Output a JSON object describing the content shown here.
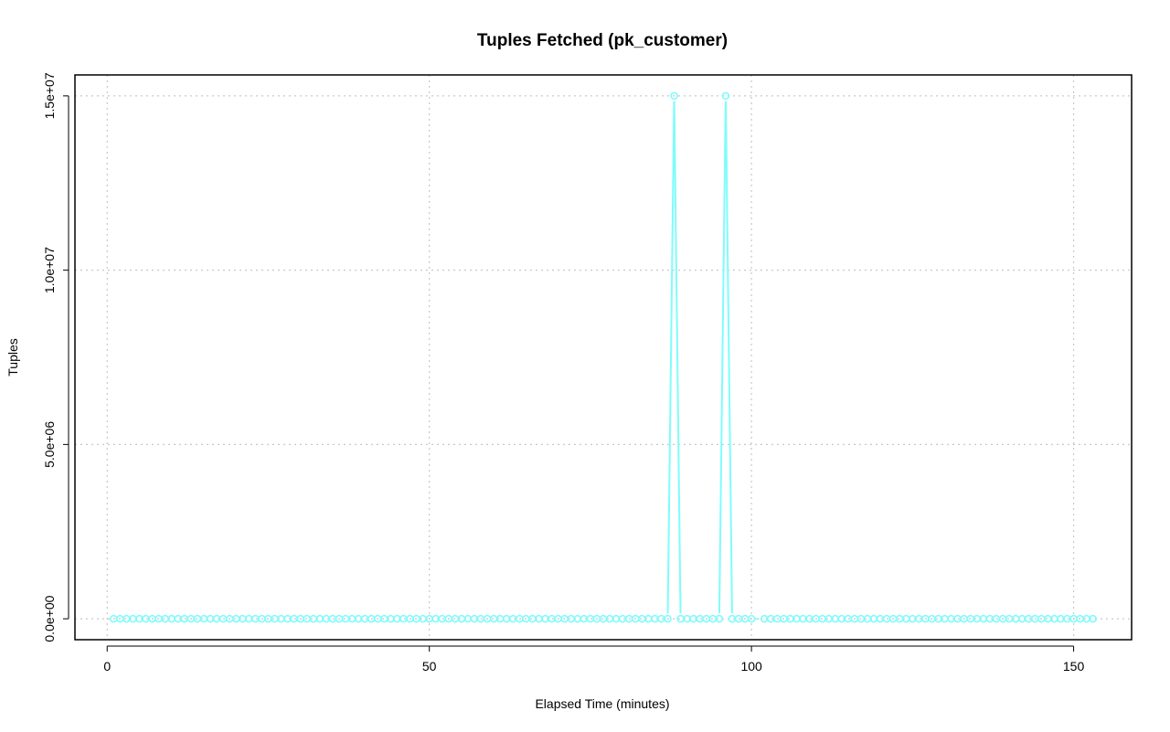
{
  "chart_data": {
    "type": "line",
    "title": "Tuples Fetched (pk_customer)",
    "xlabel": "Elapsed Time (minutes)",
    "ylabel": "Tuples",
    "xlim": [
      -5,
      159
    ],
    "ylim": [
      -600000,
      15600000
    ],
    "x_ticks": [
      0,
      50,
      100,
      150
    ],
    "x_tick_labels": [
      "0",
      "50",
      "100",
      "150"
    ],
    "y_ticks": [
      0,
      5000000,
      10000000,
      15000000
    ],
    "y_tick_labels": [
      "0.0e+00",
      "5.0e+06",
      "1.0e+07",
      "1.5e+07"
    ],
    "grid": true,
    "series_color": "#7ffcfc",
    "series": [
      {
        "x": [
          1,
          2,
          3,
          4,
          5,
          6,
          7,
          8,
          9,
          10,
          11,
          12,
          13,
          14,
          15,
          16,
          17,
          18,
          19,
          20,
          21,
          22,
          23,
          24,
          25,
          26,
          27,
          28,
          29,
          30,
          31,
          32,
          33,
          34,
          35,
          36,
          37,
          38,
          39,
          40,
          41,
          42,
          43,
          44,
          45,
          46,
          47,
          48,
          49,
          50,
          51,
          52,
          53,
          54,
          55,
          56,
          57,
          58,
          59,
          60,
          61,
          62,
          63,
          64,
          65,
          66,
          67,
          68,
          69,
          70,
          71,
          72,
          73,
          74,
          75,
          76,
          77,
          78,
          79,
          80,
          81,
          82,
          83,
          84,
          85,
          86,
          87,
          88,
          89,
          90,
          91,
          92,
          93,
          94,
          95,
          96,
          97,
          98,
          99,
          100,
          102,
          103,
          104,
          105,
          106,
          107,
          108,
          109,
          110,
          111,
          112,
          113,
          114,
          115,
          116,
          117,
          118,
          119,
          120,
          121,
          122,
          123,
          124,
          125,
          126,
          127,
          128,
          129,
          130,
          131,
          132,
          133,
          134,
          135,
          136,
          137,
          138,
          139,
          140,
          141,
          142,
          143,
          144,
          145,
          146,
          147,
          148,
          149,
          150,
          151,
          152,
          153
        ],
        "y": [
          0,
          0,
          0,
          0,
          0,
          0,
          0,
          0,
          0,
          0,
          0,
          0,
          0,
          0,
          0,
          0,
          0,
          0,
          0,
          0,
          0,
          0,
          0,
          0,
          0,
          0,
          0,
          0,
          0,
          0,
          0,
          0,
          0,
          0,
          0,
          0,
          0,
          0,
          0,
          0,
          0,
          0,
          0,
          0,
          0,
          0,
          0,
          0,
          0,
          0,
          0,
          0,
          0,
          0,
          0,
          0,
          0,
          0,
          0,
          0,
          0,
          0,
          0,
          0,
          0,
          0,
          0,
          0,
          0,
          0,
          0,
          0,
          0,
          0,
          0,
          0,
          0,
          0,
          0,
          0,
          0,
          0,
          0,
          0,
          0,
          0,
          0,
          15000000,
          0,
          0,
          0,
          0,
          0,
          0,
          0,
          15000000,
          0,
          0,
          0,
          0,
          0,
          0,
          0,
          0,
          0,
          0,
          0,
          0,
          0,
          0,
          0,
          0,
          0,
          0,
          0,
          0,
          0,
          0,
          0,
          0,
          0,
          0,
          0,
          0,
          0,
          0,
          0,
          0,
          0,
          0,
          0,
          0,
          0,
          0,
          0,
          0,
          0,
          0,
          0,
          0,
          0,
          0,
          0,
          0,
          0,
          0,
          0,
          0,
          0,
          0,
          0,
          0
        ]
      }
    ]
  }
}
